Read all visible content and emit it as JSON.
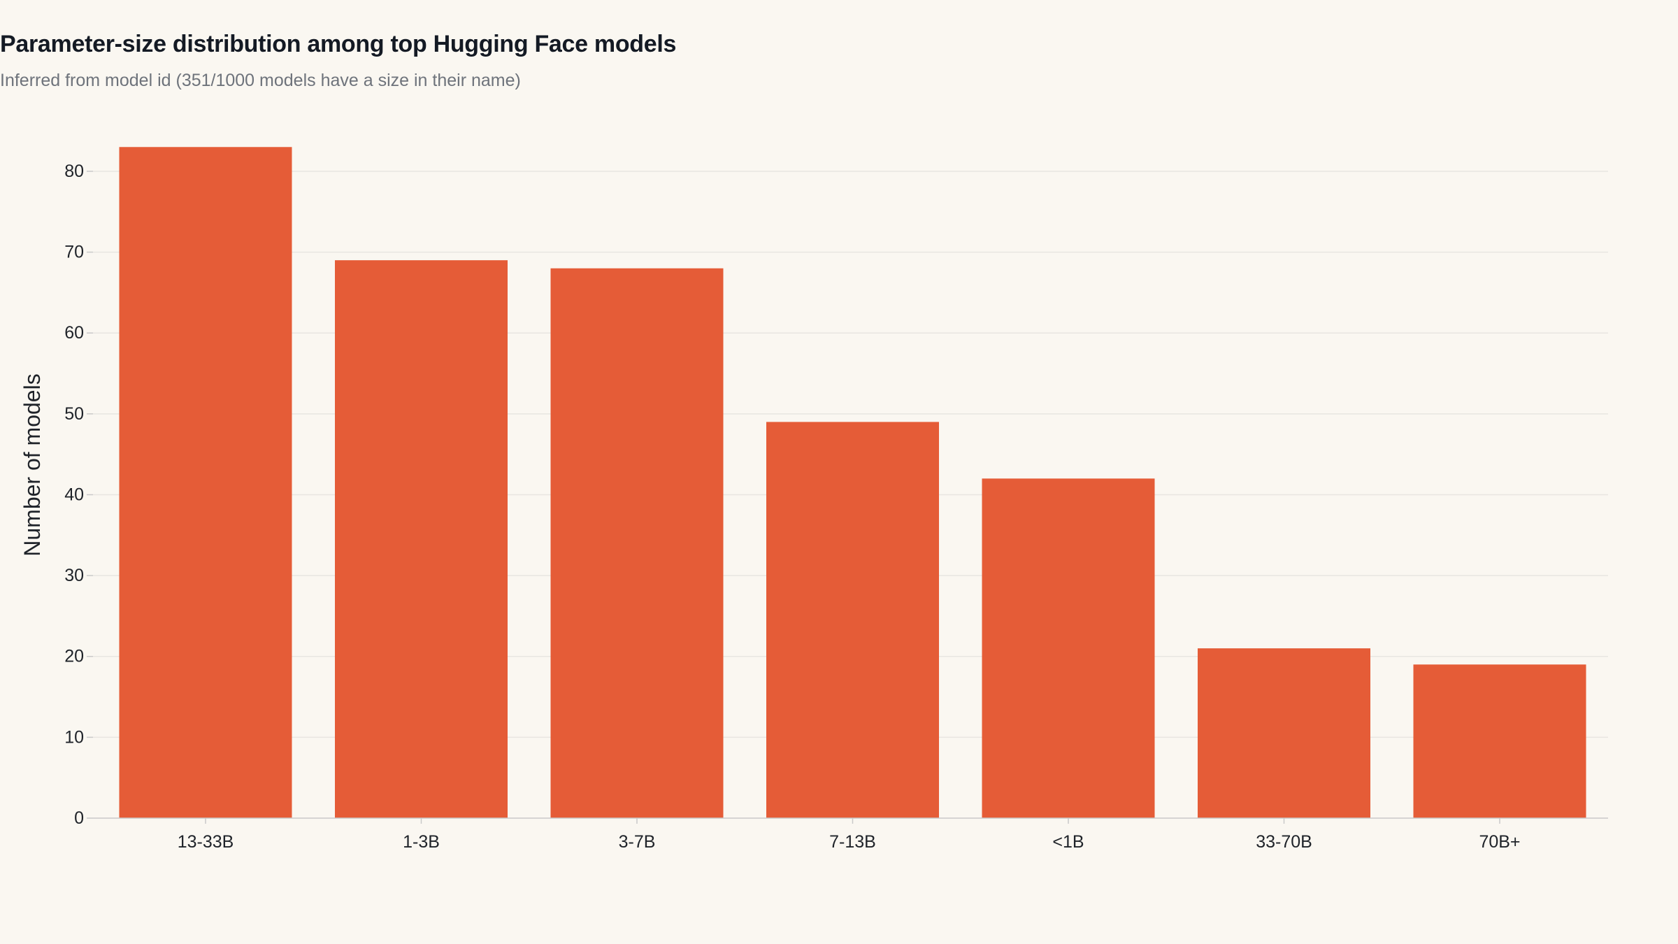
{
  "chart_data": {
    "type": "bar",
    "title": "Parameter-size distribution among top Hugging Face models",
    "subtitle": "Inferred from model id (351/1000 models have a size in their name)",
    "xlabel": "",
    "ylabel": "Number of models",
    "categories": [
      "13-33B",
      "1-3B",
      "3-7B",
      "7-13B",
      "<1B",
      "33-70B",
      "70B+"
    ],
    "values": [
      83,
      69,
      68,
      49,
      42,
      21,
      19
    ],
    "ylim": [
      0,
      86
    ],
    "yticks": [
      0,
      10,
      20,
      30,
      40,
      50,
      60,
      70,
      80
    ],
    "grid": true,
    "legend": "none",
    "colors": {
      "bar": "#e55c37",
      "grid": "#e8e6e1",
      "axis": "#c9c9c9",
      "text": "#1f2329"
    }
  }
}
